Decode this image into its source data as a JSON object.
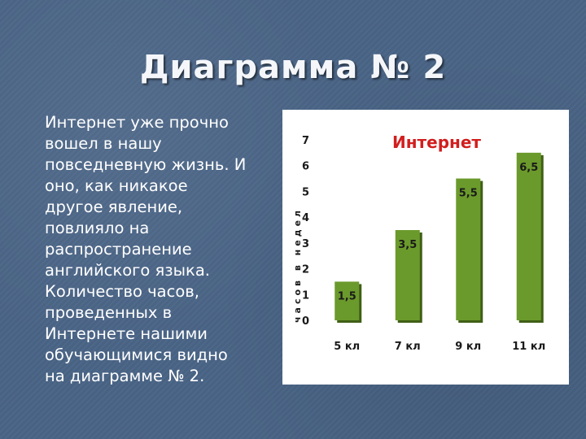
{
  "slide": {
    "title": "Диаграмма № 2",
    "body": "Интернет уже прочно\nвошел в нашу\nповседневную жизнь. И\nоно, как никакое\nдругое явление,\nповлияло на\nраспространение\nанглийского языка.\nКоличество часов,\nпроведенных в\nИнтернете нашими\nобучающимися  видно\nна  диаграмме № 2."
  },
  "chart_data": {
    "type": "bar",
    "title": "Интернет",
    "ylabel": "часов в недел",
    "xlabel": "",
    "categories": [
      "5 кл",
      "7 кл",
      "9 кл",
      "11 кл"
    ],
    "values": [
      1.5,
      3.5,
      5.5,
      6.5
    ],
    "value_labels": [
      "1,5",
      "3,5",
      "5,5",
      "6,5"
    ],
    "ylim": [
      0,
      7
    ],
    "yticks": [
      "0",
      "1",
      "2",
      "3",
      "4",
      "5",
      "6",
      "7"
    ],
    "grid": false,
    "bar_color": "#6b9a2c",
    "bar_shadow_color": "#3f5f16",
    "title_color": "#d21e1e"
  }
}
